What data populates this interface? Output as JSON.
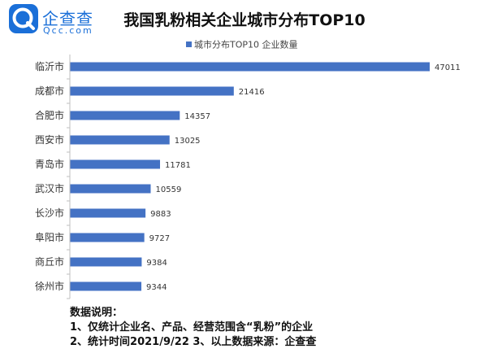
{
  "brand": {
    "name": "企查查",
    "domain": "Qcc.com"
  },
  "chart_data": {
    "type": "bar",
    "orientation": "horizontal",
    "title": "我国乳粉相关企业城市分布TOP10",
    "categories": [
      "临沂市",
      "成都市",
      "合肥市",
      "西安市",
      "青岛市",
      "武汉市",
      "长沙市",
      "阜阳市",
      "商丘市",
      "徐州市"
    ],
    "series": [
      {
        "name": "城市分布TOP10 企业数量",
        "values": [
          47011,
          21416,
          14357,
          13025,
          11781,
          10559,
          9883,
          9727,
          9384,
          9344
        ],
        "color": "#4472c4"
      }
    ],
    "data_labels": true,
    "legend_position": "top",
    "grid": false,
    "xlim": [
      0,
      47011
    ]
  },
  "notes": {
    "heading": "数据说明：",
    "line1": "1、仅统计企业名、产品、经营范围含“乳粉”的企业",
    "line2": "2、统计时间2021/9/22    3、以上数据来源：企查查"
  }
}
